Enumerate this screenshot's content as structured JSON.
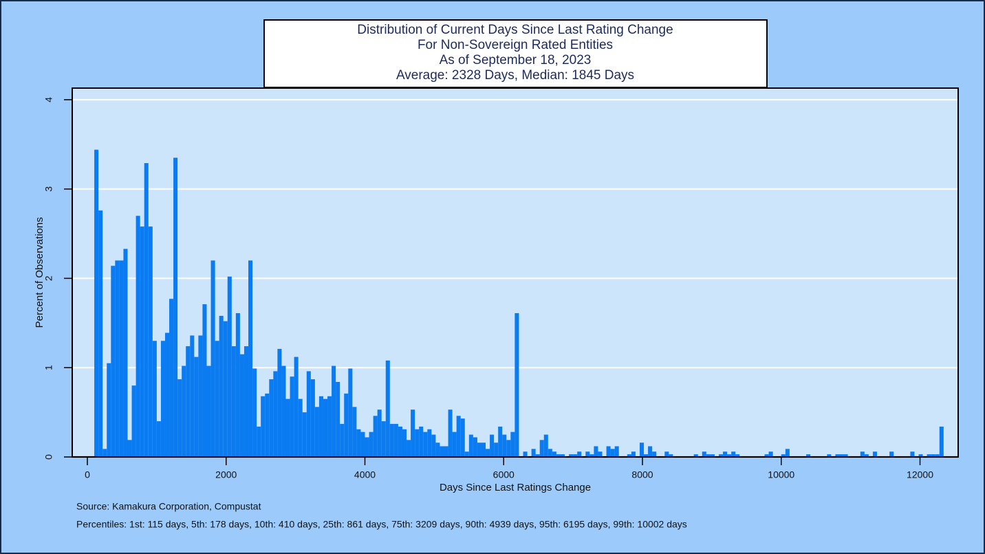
{
  "chart_data": {
    "type": "histogram",
    "title": [
      "Distribution of Current Days Since Last Rating Change",
      "For Non-Sovereign Rated Entities",
      "As of September 18, 2023",
      "Average:   2328 Days,  Median:   1845 Days"
    ],
    "xlabel": "Days Since Last Ratings Change",
    "ylabel": "Percent of Observations",
    "notes": [
      "Source: Kamakura Corporation, Compustat",
      "Percentiles: 1st: 115 days, 5th: 178 days, 10th: 410 days, 25th: 861 days, 75th: 3209 days, 90th: 4939 days, 95th: 6195 days, 99th: 10002 days"
    ],
    "color": "#0a7bf0",
    "grid": true,
    "xlim": [
      -218,
      12550
    ],
    "ylim": [
      0,
      4.13
    ],
    "xticks": [
      0,
      2000,
      4000,
      6000,
      8000,
      10000,
      12000
    ],
    "yticks": [
      0,
      1,
      2,
      3,
      4
    ],
    "bins": [
      100,
      160,
      220,
      280,
      340,
      400,
      460,
      520,
      580,
      640,
      700,
      760,
      820,
      880,
      940,
      1000,
      1060,
      1120,
      1180,
      1240,
      1300,
      1360,
      1420,
      1480,
      1540,
      1600,
      1660,
      1720,
      1780,
      1840,
      1900,
      1960,
      2020,
      2080,
      2140,
      2200,
      2260,
      2320,
      2380,
      2440,
      2500,
      2560,
      2620,
      2680,
      2740,
      2800,
      2860,
      2920,
      2980,
      3040,
      3100,
      3160,
      3220,
      3280,
      3340,
      3400,
      3460,
      3520,
      3580,
      3640,
      3700,
      3760,
      3820,
      3880,
      3940,
      4000,
      4060,
      4120,
      4180,
      4240,
      4300,
      4360,
      4420,
      4480,
      4540,
      4600,
      4660,
      4720,
      4780,
      4840,
      4900,
      4960,
      5020,
      5080,
      5140,
      5200,
      5260,
      5320,
      5380,
      5440,
      5500,
      5560,
      5620,
      5680,
      5740,
      5800,
      5860,
      5920,
      5980,
      6040,
      6100,
      6160,
      6220,
      6280,
      6340,
      6400,
      6460,
      6520,
      6580,
      6640,
      6700,
      6760,
      6820,
      6880,
      6940,
      7000,
      7060,
      7120,
      7180,
      7240,
      7300,
      7360,
      7420,
      7480,
      7540,
      7600,
      7660,
      7720,
      7780,
      7840,
      7900,
      7960,
      8020,
      8080,
      8140,
      8200,
      8260,
      8320,
      8380,
      8440,
      8500,
      8560,
      8620,
      8680,
      8740,
      8800,
      8860,
      8920,
      8980,
      9040,
      9100,
      9160,
      9220,
      9280,
      9340,
      9400,
      9460,
      9520,
      9580,
      9640,
      9700,
      9760,
      9820,
      9880,
      9940,
      10000,
      10060,
      10120,
      10180,
      10240,
      10300,
      10360,
      10420,
      10480,
      10540,
      10600,
      10660,
      10720,
      10780,
      10840,
      10900,
      10960,
      11020,
      11080,
      11140,
      11200,
      11260,
      11320,
      11380,
      11440,
      11500,
      11560,
      11620,
      11680,
      11740,
      11800,
      11860,
      11920,
      11980,
      12040,
      12100,
      12160,
      12220,
      12280,
      12340
    ],
    "values": [
      3.44,
      2.76,
      0.09,
      1.05,
      2.14,
      2.2,
      2.2,
      2.33,
      0.19,
      0.8,
      2.7,
      2.58,
      3.29,
      2.58,
      1.3,
      0.4,
      1.3,
      1.39,
      1.77,
      3.35,
      0.87,
      1.02,
      1.24,
      1.36,
      1.12,
      1.36,
      1.71,
      1.02,
      2.2,
      1.3,
      1.58,
      1.52,
      2.02,
      1.24,
      1.61,
      1.15,
      1.24,
      2.2,
      0.99,
      0.34,
      0.68,
      0.71,
      0.87,
      0.96,
      1.21,
      1.02,
      0.65,
      0.9,
      1.12,
      0.65,
      0.5,
      0.96,
      0.87,
      0.56,
      0.68,
      0.65,
      0.68,
      1.02,
      0.84,
      0.37,
      0.71,
      0.99,
      0.56,
      0.31,
      0.28,
      0.22,
      0.28,
      0.46,
      0.53,
      0.4,
      1.08,
      0.37,
      0.37,
      0.34,
      0.31,
      0.19,
      0.53,
      0.31,
      0.34,
      0.28,
      0.31,
      0.25,
      0.16,
      0.12,
      0.12,
      0.53,
      0.28,
      0.46,
      0.43,
      0.06,
      0.25,
      0.22,
      0.16,
      0.16,
      0.09,
      0.25,
      0.16,
      0.34,
      0.25,
      0.19,
      0.28,
      1.61,
      0,
      0.06,
      0,
      0.09,
      0.03,
      0.19,
      0.25,
      0.09,
      0.06,
      0.03,
      0.03,
      0,
      0.03,
      0.03,
      0.06,
      0,
      0.06,
      0.03,
      0.12,
      0.06,
      0,
      0.12,
      0.09,
      0.12,
      0,
      0,
      0.03,
      0.06,
      0,
      0.16,
      0.03,
      0.12,
      0.06,
      0,
      0,
      0.06,
      0.03,
      0,
      0,
      0,
      0,
      0,
      0.03,
      0,
      0.06,
      0.03,
      0.03,
      0,
      0.03,
      0.06,
      0.03,
      0.06,
      0.03,
      0,
      0,
      0,
      0,
      0,
      0,
      0.03,
      0.06,
      0,
      0,
      0.03,
      0.09,
      0,
      0,
      0,
      0,
      0.03,
      0,
      0,
      0,
      0,
      0.03,
      0,
      0.03,
      0.03,
      0.03,
      0,
      0,
      0,
      0.06,
      0.03,
      0,
      0.06,
      0,
      0,
      0,
      0.06,
      0,
      0,
      0,
      0,
      0.06,
      0,
      0.03,
      0,
      0.03,
      0.03,
      0.03,
      0.34
    ]
  }
}
